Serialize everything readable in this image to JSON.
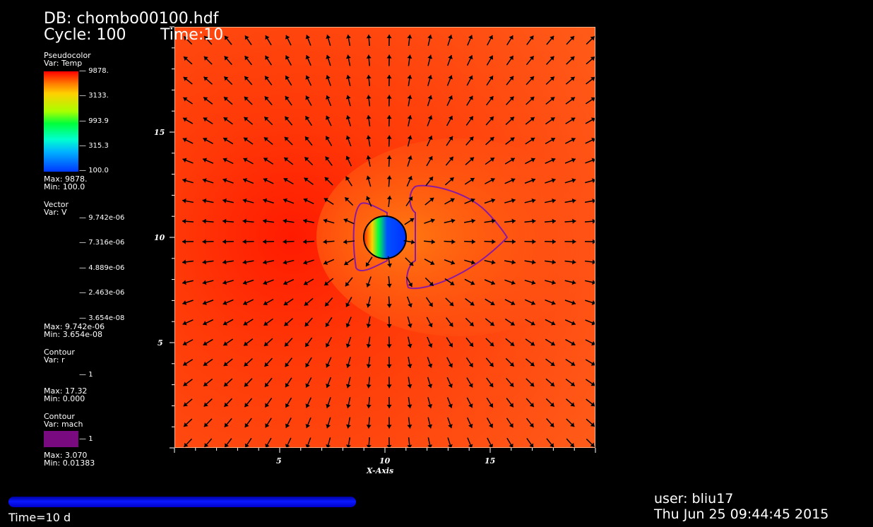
{
  "header": {
    "db_label": "DB: chombo00100.hdf",
    "cycle_label": "Cycle: 100",
    "time_label": "Time:10"
  },
  "legend": {
    "pseudocolor": {
      "title": "Pseudocolor",
      "var": "Var: Temp",
      "ticks": [
        "9878.",
        "3133.",
        "993.9",
        "315.3",
        "100.0"
      ],
      "max": "Max: 9878.",
      "min": "Min: 100.0"
    },
    "vector": {
      "title": "Vector",
      "var": "Var: V",
      "ticks": [
        "9.742e-06",
        "7.316e-06",
        "4.889e-06",
        "2.463e-06",
        "3.654e-08"
      ],
      "max": "Max: 9.742e-06",
      "min": "Min: 3.654e-08"
    },
    "contour_r": {
      "title": "Contour",
      "var": "Var: r",
      "tick": "1",
      "max": "Max: 17.32",
      "min": "Min: 0.000"
    },
    "contour_mach": {
      "title": "Contour",
      "var": "Var: mach",
      "tick": "1",
      "max": "Max: 3.070",
      "min": "Min: 0.01383"
    }
  },
  "axes": {
    "xlabel": "X-Axis",
    "x_ticks": [
      "5",
      "10",
      "15"
    ],
    "y_ticks": [
      "15",
      "10",
      "5"
    ]
  },
  "footer": {
    "time_label": "Time=10 d",
    "progress": 1.0,
    "user": "user: bliu17",
    "date": "Thu Jun 25 09:44:45 2015"
  },
  "colors": {
    "plot_bg": "#ff4a12",
    "mach_contour": "#8a1aa0",
    "arrow": "#000000",
    "timebar": "#0a18ff"
  }
}
